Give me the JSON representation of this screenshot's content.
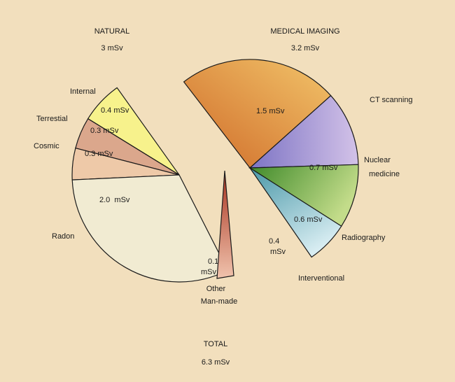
{
  "chart_data": [
    {
      "type": "pie",
      "title": "NATURAL",
      "subtitle": "3 mSv",
      "unit": "mSv",
      "slices": [
        {
          "label": "Internal",
          "value_label": "0.4 mSv",
          "value": 0.4,
          "color": "#f7f28c"
        },
        {
          "label": "Terrestial",
          "value_label": "0.3 mSv",
          "value": 0.3,
          "color": "#dba78c"
        },
        {
          "label": "Cosmic",
          "value_label": "0.3 mSv",
          "value": 0.3,
          "color": "#eec9a8"
        },
        {
          "label": "Radon",
          "value_label": "2.0  mSv",
          "value": 2.0,
          "color": "#f1ebd2"
        }
      ]
    },
    {
      "type": "pie",
      "title": "MEDICAL IMAGING",
      "subtitle": "3.2 mSv",
      "unit": "mSv",
      "slices": [
        {
          "label": "CT scanning",
          "value_label": "1.5 mSv",
          "value": 1.5,
          "color": "#e39a3f"
        },
        {
          "label": "Nuclear\nmedicine",
          "value_label": "0.7 mSv",
          "value": 0.7,
          "color": "#a294d2"
        },
        {
          "label": "Radiography",
          "value_label": "0.6 mSv",
          "value": 0.6,
          "color": "#7fb24e"
        },
        {
          "label": "Interventional",
          "value_label": "0.4\nmSv",
          "value": 0.4,
          "color": "#8fc3d0"
        }
      ]
    },
    {
      "type": "pie",
      "title": "",
      "subtitle": "",
      "unit": "mSv",
      "slices": [
        {
          "label": "Other\nMan-made",
          "value_label": "0.1\nmSv",
          "value": 0.1,
          "color": "#d27a66"
        }
      ]
    }
  ],
  "total": {
    "title": "TOTAL",
    "value_label": "6.3 mSv"
  }
}
